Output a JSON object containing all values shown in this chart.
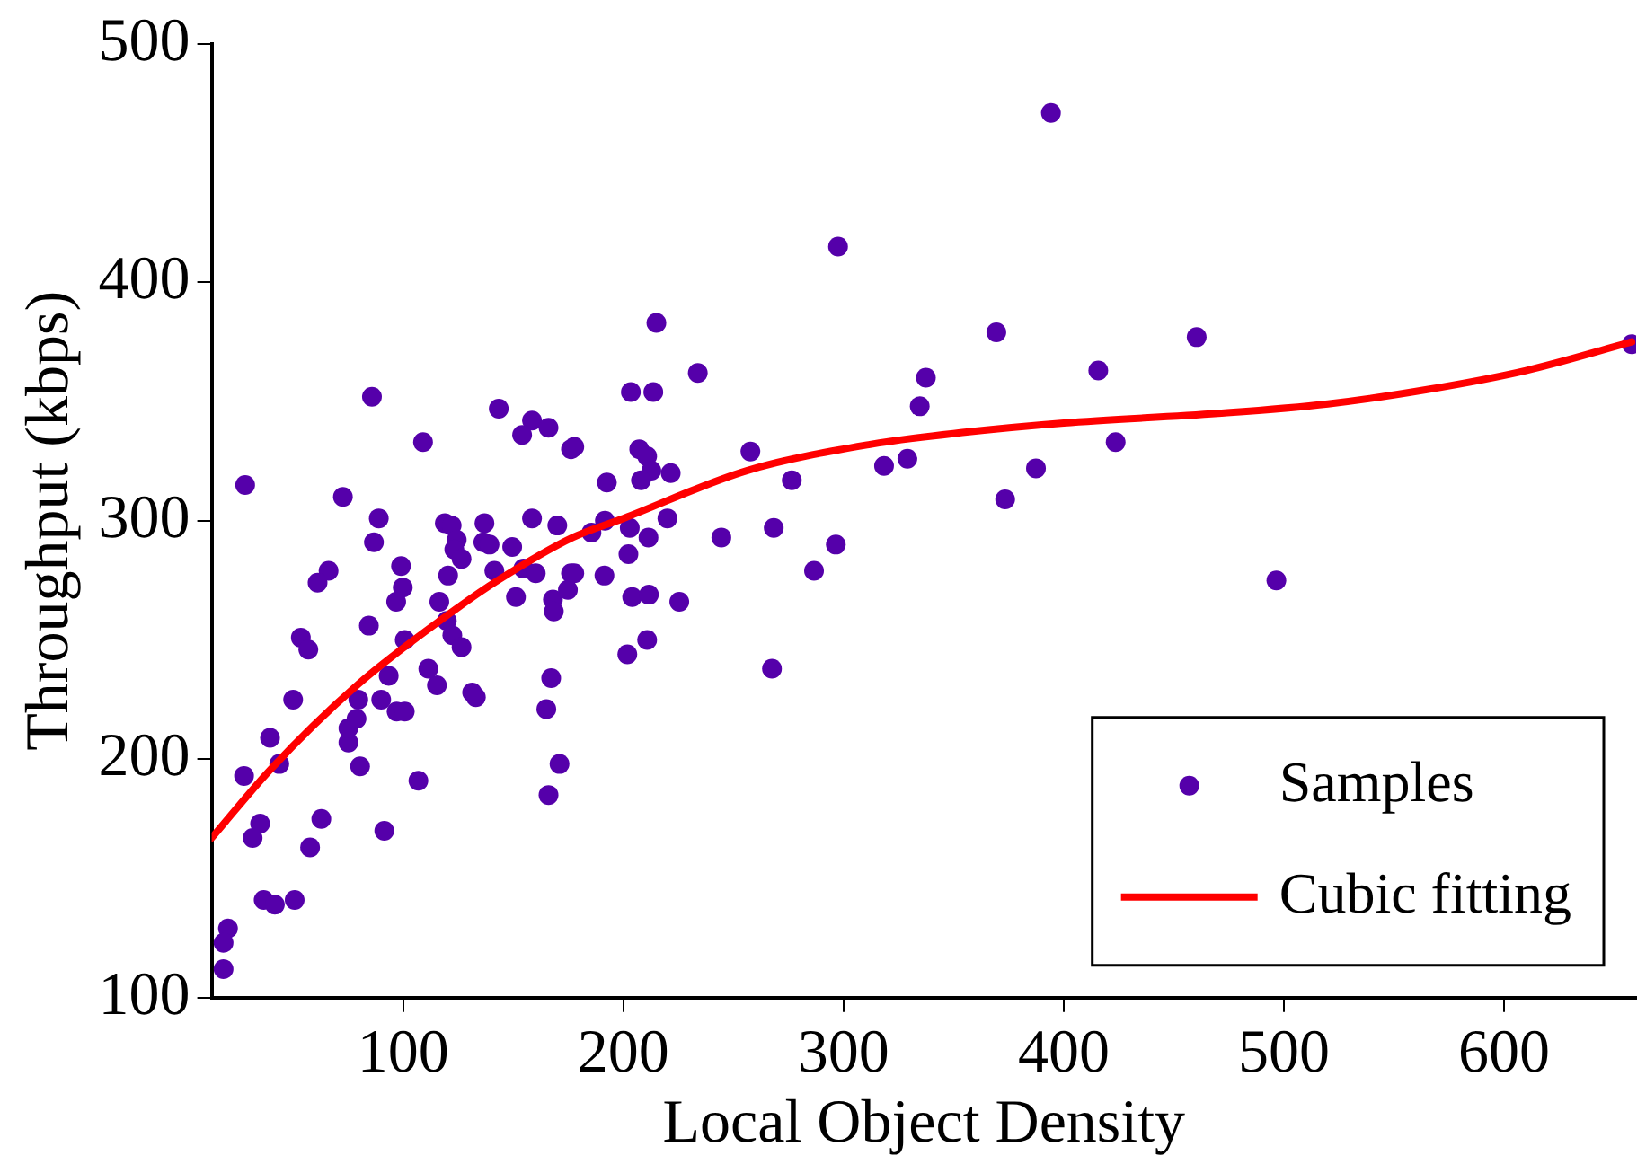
{
  "chart_data": {
    "type": "scatter",
    "xlabel": "Local Object Density",
    "ylabel": "Throughput (kbps)",
    "xlim": [
      13,
      660
    ],
    "ylim": [
      100,
      500
    ],
    "xticks": [
      100,
      200,
      300,
      400,
      500,
      600
    ],
    "yticks": [
      100,
      200,
      300,
      400,
      500
    ],
    "grid": false,
    "legend": "bottom right",
    "marker": "circle",
    "series": [
      {
        "name": "Samples",
        "color": "#5500aa",
        "x": [
          50,
          39.5,
          27.7,
          43.7,
          35,
          31.6,
          62.8,
          57.7,
          91.4,
          36.6,
          41.7,
          50.7,
          20.4,
          18.4,
          18.4,
          80.4,
          106.9,
          75.1,
          75.1,
          78.8,
          79.6,
          90,
          97,
          100.7,
          115.3,
          131.3,
          133,
          165,
          171,
          166,
          85.8,
          28.2,
          72.6,
          109,
          143.4,
          158.5,
          154,
          166,
          176.2,
          88.9,
          86.7,
          66.1,
          61.1,
          99,
          99.8,
          96.8,
          84.4,
          53.5,
          56.9,
          118.9,
          122,
          136.9,
          124.3,
          123.2,
          126.5,
          136.4,
          139.2,
          149.5,
          158.5,
          170,
          141.4,
          154.6,
          160.2,
          120.4,
          116.4,
          119.8,
          122.3,
          126.5,
          151.2,
          168,
          168.4,
          176.2,
          174.8,
          93.4,
          111.4,
          100.7,
          167.2,
          215,
          233.8,
          203.4,
          213.6,
          177.7,
          207.2,
          210.8,
          212.7,
          208,
          221.5,
          192.5,
          257.7,
          276.5,
          318.4,
          329,
          334.6,
          337.4,
          185.5,
          191.6,
          202.9,
          211.4,
          202.3,
          220,
          244.5,
          268.3,
          296.5,
          286.6,
          177.7,
          191.4,
          204,
          211.6,
          225.4,
          201.8,
          210.8,
          267.5,
          297.5,
          394.2,
          369.4,
          460.4,
          415.7,
          387.4,
          373.4,
          423.6,
          496.6,
          658
        ],
        "values": [
          225,
          209,
          193,
          198,
          173,
          167,
          175,
          163,
          170,
          141,
          139,
          141,
          129,
          123,
          112,
          197,
          191,
          207,
          213,
          217,
          225,
          225,
          220,
          220,
          231,
          228,
          226,
          221,
          198,
          185,
          352,
          315,
          310,
          333,
          347,
          342,
          336,
          339,
          330,
          301,
          291,
          279,
          274,
          281,
          272,
          266,
          256,
          251,
          246,
          299,
          298,
          299,
          292,
          288,
          284,
          291,
          290,
          289,
          301,
          298,
          279,
          280,
          278,
          277,
          266,
          258,
          252,
          247,
          268,
          267,
          262,
          278,
          271,
          235,
          238,
          250,
          234,
          383,
          362,
          354,
          354,
          331,
          330,
          327,
          321,
          317,
          320,
          316,
          329,
          317,
          323,
          326,
          348,
          360,
          295,
          300,
          297,
          293,
          286,
          301,
          293,
          297,
          290,
          279,
          278,
          277,
          268,
          269,
          266,
          244,
          250,
          238,
          415,
          471,
          379,
          377,
          363,
          322,
          309,
          333,
          275,
          374
        ]
      },
      {
        "name": "Cubic fitting",
        "type": "line",
        "color": "#ff0000",
        "marker": "none",
        "line_style": "solid",
        "x": [
          13,
          40,
          79,
          121,
          143,
          177,
          200,
          256,
          312,
          354,
          400,
          470,
          520,
          565,
          610,
          658
        ],
        "values": [
          167,
          196,
          231,
          261,
          275,
          293,
          301,
          321,
          332,
          337,
          341,
          345,
          349,
          355,
          363,
          375
        ]
      }
    ]
  }
}
